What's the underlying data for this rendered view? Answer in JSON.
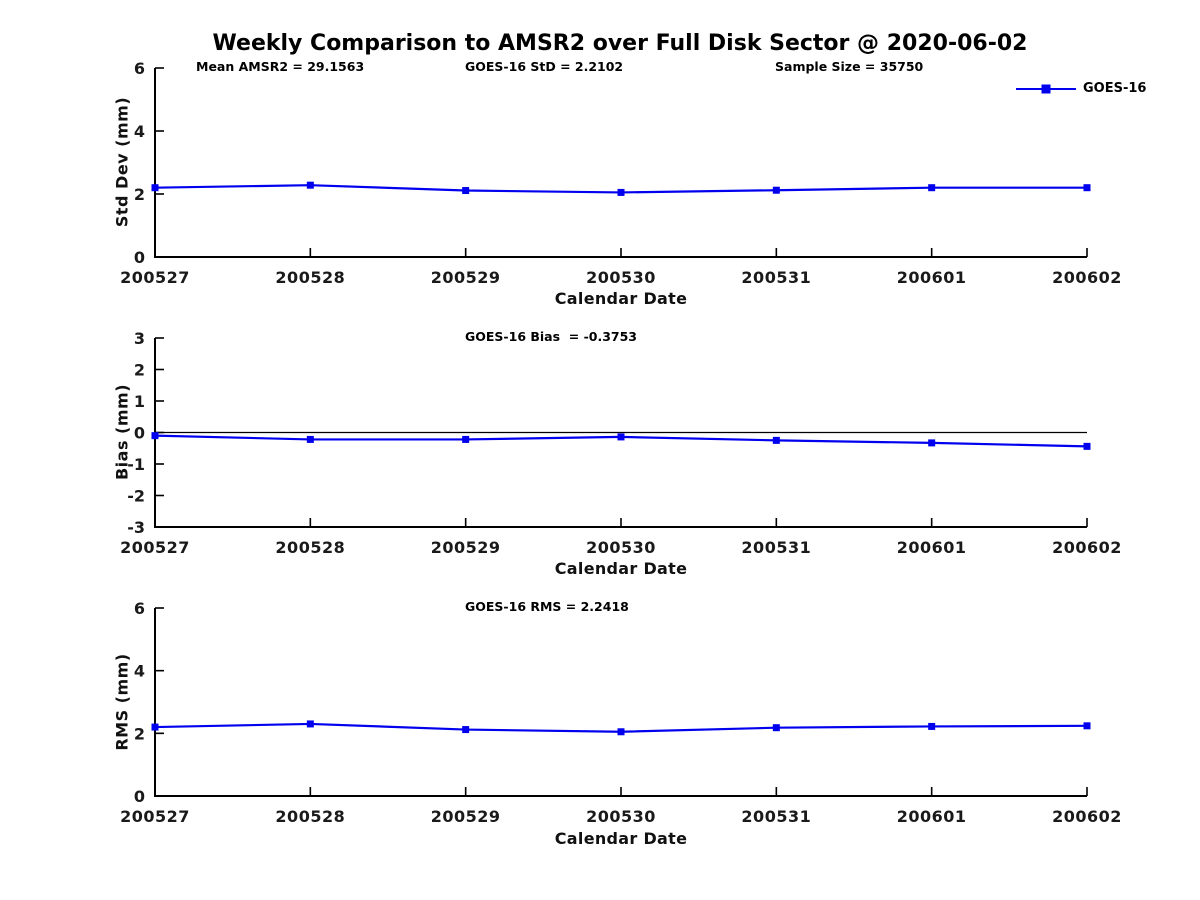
{
  "figure": {
    "title": "Weekly Comparison to AMSR2 over Full Disk Sector @ 2020-06-02"
  },
  "legend": {
    "label": "GOES-16",
    "line_color": "#0000ee",
    "marker": "square"
  },
  "chart_data": [
    {
      "type": "line",
      "name": "std-dev",
      "ylabel": "Std Dev (mm)",
      "xlabel": "Calendar Date",
      "ylim": [
        0,
        6
      ],
      "yticks": [
        0,
        2,
        4,
        6
      ],
      "categories": [
        "200527",
        "200528",
        "200529",
        "200530",
        "200531",
        "200601",
        "200602"
      ],
      "series": [
        {
          "name": "GOES-16",
          "color": "#0000ee",
          "marker": "square",
          "values": [
            2.2,
            2.28,
            2.11,
            2.05,
            2.12,
            2.2,
            2.2
          ]
        }
      ],
      "annotations": [
        "Mean AMSR2 = 29.1563",
        "GOES-16 StD = 2.2102",
        "Sample Size = 35750"
      ],
      "zero_line": false,
      "grid": false,
      "legend_position": "top-right-outside"
    },
    {
      "type": "line",
      "name": "bias",
      "ylabel": "Bias (mm)",
      "xlabel": "Calendar Date",
      "ylim": [
        -3,
        3
      ],
      "yticks": [
        3,
        2,
        1,
        0,
        -1,
        -2,
        -3
      ],
      "categories": [
        "200527",
        "200528",
        "200529",
        "200530",
        "200531",
        "200601",
        "200602"
      ],
      "series": [
        {
          "name": "GOES-16",
          "color": "#0000ee",
          "marker": "square",
          "values": [
            -0.1,
            -0.22,
            -0.22,
            -0.14,
            -0.25,
            -0.33,
            -0.44
          ]
        }
      ],
      "annotations": [
        "GOES-16 Bias  = -0.3753"
      ],
      "zero_line": true,
      "grid": false
    },
    {
      "type": "line",
      "name": "rms",
      "ylabel": "RMS (mm)",
      "xlabel": "Calendar Date",
      "ylim": [
        0,
        6
      ],
      "yticks": [
        0,
        2,
        4,
        6
      ],
      "categories": [
        "200527",
        "200528",
        "200529",
        "200530",
        "200531",
        "200601",
        "200602"
      ],
      "series": [
        {
          "name": "GOES-16",
          "color": "#0000ee",
          "marker": "square",
          "values": [
            2.2,
            2.3,
            2.12,
            2.05,
            2.18,
            2.22,
            2.24
          ]
        }
      ],
      "annotations": [
        "GOES-16 RMS = 2.2418"
      ],
      "zero_line": false,
      "grid": false
    }
  ]
}
